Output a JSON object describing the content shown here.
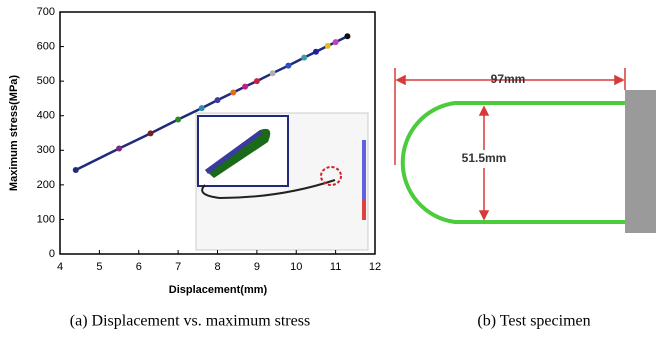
{
  "chart_data": {
    "type": "line",
    "x_label": "Displacement(mm)",
    "y_label": "Maximum stress(MPa)",
    "xlim": [
      4,
      12
    ],
    "xticks": [
      4,
      5,
      6,
      7,
      8,
      9,
      10,
      11,
      12
    ],
    "ylim": [
      0,
      700
    ],
    "yticks": [
      0,
      100,
      200,
      300,
      400,
      500,
      600,
      700
    ],
    "series": [
      {
        "color": "#1f2a7a",
        "x": [
          4.4,
          5.5,
          6.3,
          7,
          7.6,
          8,
          8.4,
          8.7,
          9,
          9.4,
          9.8,
          10.2,
          10.5,
          10.8,
          11,
          11.3
        ],
        "values": [
          243,
          305,
          349,
          389,
          422,
          445,
          467,
          484,
          500,
          523,
          545,
          568,
          585,
          602,
          613,
          630
        ],
        "marker_colors": [
          "#1f2a7a",
          "#7a2a7a",
          "#7a1f1f",
          "#2a8a2a",
          "#2a8ab0",
          "#3a3aa0",
          "#e07020",
          "#c02080",
          "#d02040",
          "#b0b0b0",
          "#3050c0",
          "#40a0a0",
          "#2020a0",
          "#e0c020",
          "#c040c0",
          "#101010"
        ]
      }
    ]
  },
  "diagram": {
    "width_label": "97mm",
    "height_label": "51.5mm"
  },
  "captions": [
    "(a) Displacement vs. maximum stress",
    "(b) Test specimen"
  ]
}
